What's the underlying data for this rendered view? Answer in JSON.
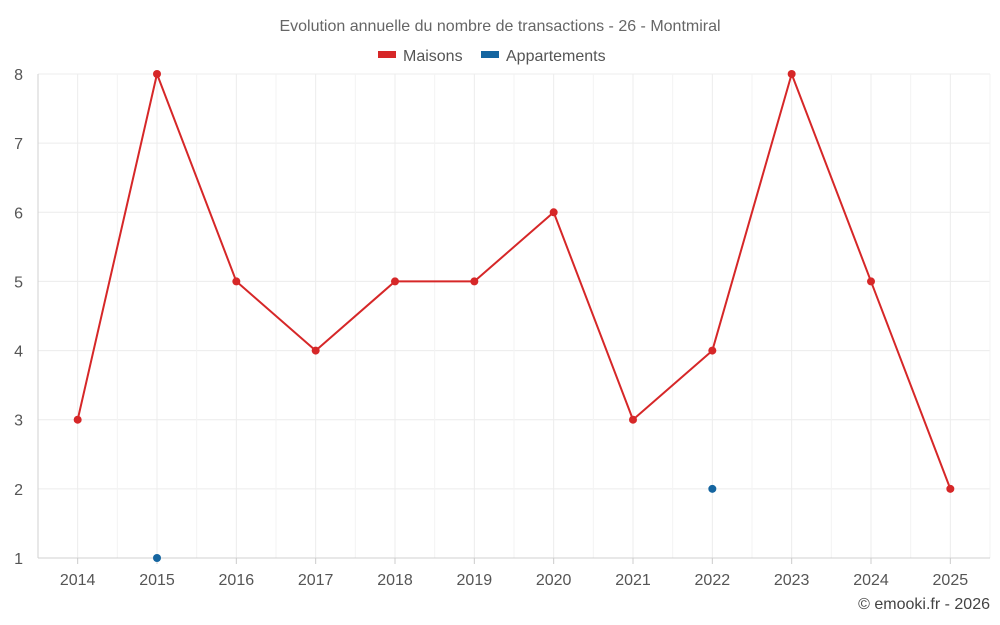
{
  "chart_data": {
    "type": "line",
    "title": "Evolution annuelle du nombre de transactions - 26 - Montmiral",
    "xlabel": "",
    "ylabel": "",
    "categories": [
      "2014",
      "2015",
      "2016",
      "2017",
      "2018",
      "2019",
      "2020",
      "2021",
      "2022",
      "2023",
      "2024",
      "2025"
    ],
    "series": [
      {
        "name": "Maisons",
        "color": "#d62728",
        "values": [
          3,
          8,
          5,
          4,
          5,
          5,
          6,
          3,
          4,
          8,
          5,
          2
        ]
      },
      {
        "name": "Appartements",
        "color": "#1565a0",
        "values": [
          null,
          1,
          null,
          null,
          null,
          null,
          null,
          null,
          2,
          null,
          null,
          null
        ]
      }
    ],
    "ylim": [
      1,
      8
    ],
    "yticks": [
      "1",
      "2",
      "3",
      "4",
      "5",
      "6",
      "7",
      "8"
    ],
    "grid": true,
    "legend_position": "top-center",
    "credit": "© emooki.fr - 2026"
  }
}
